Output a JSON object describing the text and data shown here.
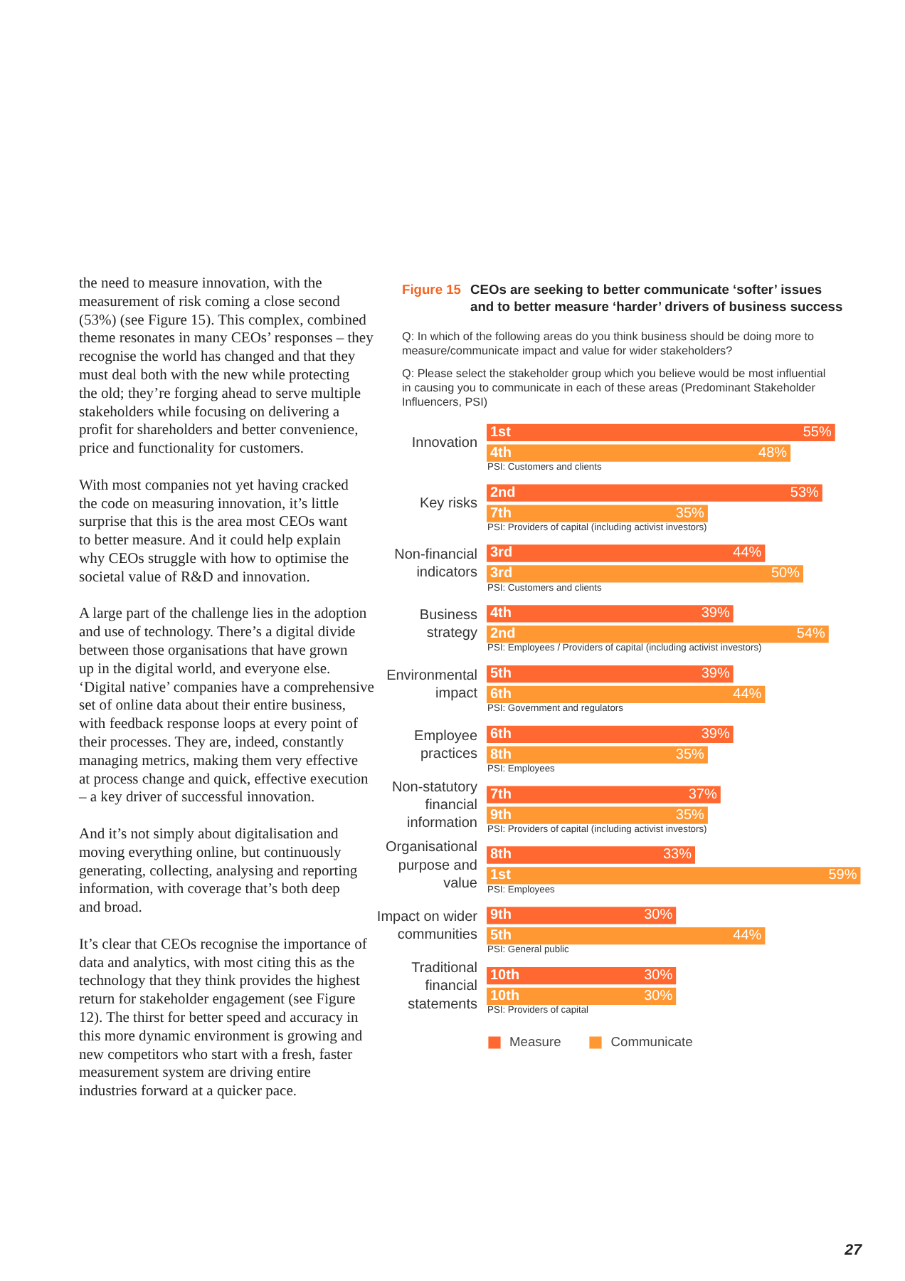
{
  "chart_data": {
    "type": "bar",
    "orientation": "horizontal",
    "title": "CEOs are seeking to better communicate ‘softer’ issues\nand to better measure ‘harder’ drivers of business success",
    "categories": [
      "Innovation",
      "Key risks",
      "Non-financial indicators",
      "Business strategy",
      "Environmental impact",
      "Employee practices",
      "Non-statutory financial information",
      "Organisational purpose and value",
      "Impact on wider communities",
      "Traditional financial statements"
    ],
    "series": [
      {
        "name": "Measure",
        "color": "#ff6830",
        "values": [
          55,
          53,
          44,
          39,
          39,
          39,
          37,
          33,
          30,
          30
        ],
        "value_labels": [
          "55%",
          "53%",
          "44%",
          "39%",
          "39%",
          "39%",
          "37%",
          "33%",
          "30%",
          "30%"
        ]
      },
      {
        "name": "Communicate",
        "color": "#ff9833",
        "values": [
          48,
          35,
          50,
          54,
          44,
          35,
          35,
          59,
          44,
          30
        ],
        "value_labels": [
          "48%",
          "35%",
          "50%",
          "54%",
          "44%",
          "35%",
          "35%",
          "59%",
          "44%",
          "30%"
        ]
      }
    ],
    "tick_labels": "y",
    "grid": false,
    "legend": "bottom left",
    "annotations": [
      "Figure 15",
      "Q: In which of the following areas do you think business should be doing more to\n   measure/communicate impact and value for wider stakeholders?",
      "Q: Please select the stakeholder group which you believe would be most influential\n   in causing you to communicate in each of these areas (Predominant Stakeholder\n   Influencers, PSI)",
      "the need to measure innovation, with the\nmeasurement of risk coming a close second\n(53%) (see Figure 15). This complex, combined\ntheme resonates in many CEOs’ responses – they\nrecognise the world has changed and that they\nmust deal both with the new while protecting\nthe old; they’re forging ahead to serve multiple\nstakeholders while focusing on delivering a\nprofit for shareholders and better convenience,\nprice and functionality for customers.",
      "With most companies not yet having cracked\nthe code on measuring innovation, it’s little\nsurprise that this is the area most CEOs want\nto better measure. And it could help explain\nwhy CEOs struggle with how to optimise the\nsocietal value of R&D and innovation.",
      "A large part of the challenge lies in the adoption\nand use of technology. There’s a digital divide\nbetween those organisations that have grown\nup in the digital world, and everyone else.\n‘Digital native’ companies have a comprehensive\nset of online data about their entire business,\nwith feedback response loops at every point of\ntheir processes. They are, indeed, constantly\nmanaging metrics, making them very effective\nat process change and quick, effective execution\n– a key driver of successful innovation.",
      "And it’s not simply about digitalisation and\nmoving everything online, but continuously\ngenerating, collecting, analysing and reporting\ninformation, with coverage that’s both deep\nand broad.",
      "It’s clear that CEOs recognise the importance of\ndata and analytics, with most citing this as the\ntechnology that they think provides the highest\nreturn for stakeholder engagement (see Figure\n12). The thirst for better speed and accuracy in\nthis more dynamic environment is growing and\nnew competitors who start with a fresh, faster\nmeasurement system are driving entire\nindustries forward at a quicker pace.",
      "27",
      {
        "text": "1st",
        "y": "Innovation"
      },
      {
        "text": "4th",
        "y": "Innovation"
      },
      {
        "text": "PSI: Customers and clients",
        "y": "Innovation"
      },
      {
        "text": "2nd",
        "y": "Key risks"
      },
      {
        "text": "7th",
        "y": "Key risks"
      },
      {
        "text": "PSI: Providers of capital (including activist investors)",
        "y": "Key risks"
      },
      {
        "text": "3rd",
        "y": "Non-financial indicators"
      },
      {
        "text": "3rd",
        "y": "Non-financial indicators"
      },
      {
        "text": "PSI: Customers and clients",
        "y": "Non-financial indicators"
      },
      {
        "text": "4th",
        "y": "Business strategy"
      },
      {
        "text": "2nd",
        "y": "Business strategy"
      },
      {
        "text": "PSI: Employees / Providers of capital (including activist investors)",
        "y": "Business strategy"
      },
      {
        "text": "5th",
        "y": "Environmental impact"
      },
      {
        "text": "6th",
        "y": "Environmental impact"
      },
      {
        "text": "PSI: Government and regulators",
        "y": "Environmental impact"
      },
      {
        "text": "6th",
        "y": "Employee practices"
      },
      {
        "text": "8th",
        "y": "Employee practices"
      },
      {
        "text": "PSI: Employees",
        "y": "Employee practices"
      },
      {
        "text": "7th",
        "y": "Non-statutory financial information"
      },
      {
        "text": "9th",
        "y": "Non-statutory financial information"
      },
      {
        "text": "PSI: Providers of capital (including activist investors)",
        "y": "Non-statutory financial information"
      },
      {
        "text": "8th",
        "y": "Organisational purpose and value"
      },
      {
        "text": "1st",
        "y": "Organisational purpose and value"
      },
      {
        "text": "PSI: Employees",
        "y": "Organisational purpose and value"
      },
      {
        "text": "9th",
        "y": "Impact on wider communities"
      },
      {
        "text": "5th",
        "y": "Impact on wider communities"
      },
      {
        "text": "PSI: General public",
        "y": "Impact on wider communities"
      },
      {
        "text": "10th",
        "y": "Traditional financial statements"
      },
      {
        "text": "10th",
        "y": "Traditional financial statements"
      },
      {
        "text": "PSI: Providers of capital",
        "y": "Traditional financial statements"
      }
    ]
  }
}
